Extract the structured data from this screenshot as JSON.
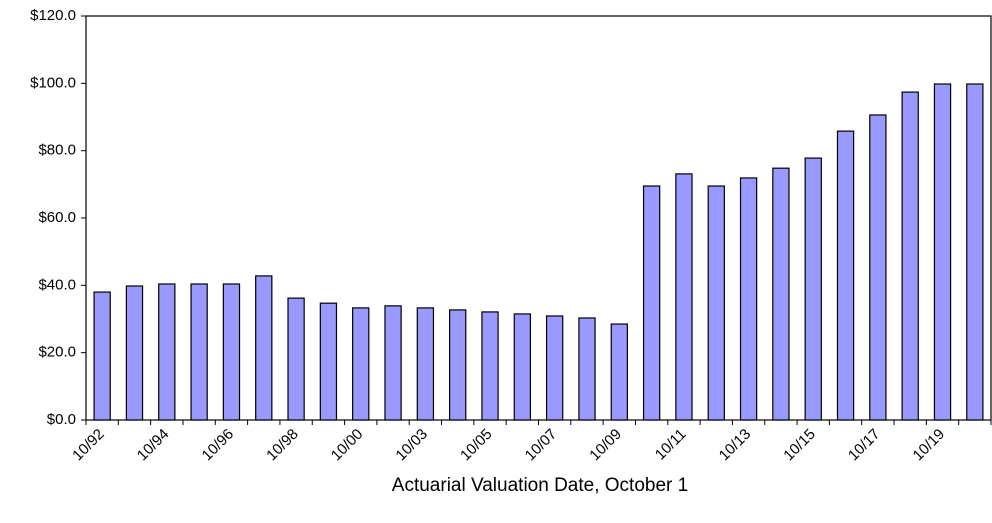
{
  "chart_data": {
    "type": "bar",
    "x_label": "Actuarial Valuation Date, October 1",
    "categories": [
      "10/92",
      null,
      "10/94",
      null,
      "10/96",
      null,
      "10/98",
      null,
      "10/00",
      null,
      "10/03",
      null,
      "10/05",
      null,
      "10/07",
      null,
      "10/09",
      null,
      "10/11",
      null,
      "10/13",
      null,
      "10/15",
      null,
      "10/17",
      null,
      "10/19",
      null
    ],
    "values": [
      38.0,
      39.8,
      40.4,
      40.4,
      40.4,
      42.8,
      36.2,
      34.7,
      33.3,
      33.9,
      33.3,
      32.7,
      32.1,
      31.5,
      30.9,
      30.3,
      28.5,
      69.5,
      73.1,
      69.5,
      71.9,
      74.8,
      77.8,
      85.8,
      90.6,
      97.4,
      99.8,
      99.8
    ],
    "color": "#9999ff",
    "ylim": [
      0,
      120
    ],
    "yticks": [
      {
        "value": 0,
        "label": "$0.0"
      },
      {
        "value": 20,
        "label": "$20.0"
      },
      {
        "value": 40,
        "label": "$40.0"
      },
      {
        "value": 60,
        "label": "$60.0"
      },
      {
        "value": 80,
        "label": "$80.0"
      },
      {
        "value": 100,
        "label": "$100.0"
      },
      {
        "value": 120,
        "label": "$120.0"
      }
    ],
    "grid": false
  }
}
